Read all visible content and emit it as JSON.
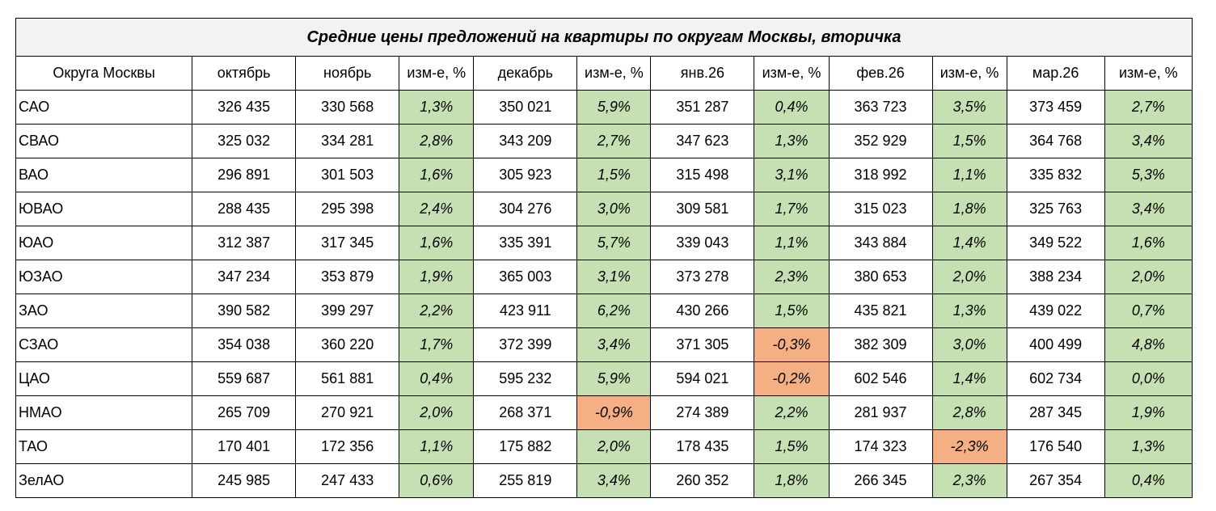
{
  "title": "Средние цены предложений на  квартиры по округам Москвы, вторичка",
  "colors": {
    "positive": "#c6e0b4",
    "negative": "#f4b084",
    "title_bg": "#f2f2f2"
  },
  "headers": [
    "Округа Москвы",
    "октябрь",
    "ноябрь",
    "изм-е, %",
    "декабрь",
    "изм-е, %",
    "янв.26",
    "изм-е, %",
    "фев.26",
    "изм-е, %",
    "мар.26",
    "изм-е, %"
  ],
  "rows": [
    [
      "САО",
      "326 435",
      "330 568",
      "1,3%",
      "350 021",
      "5,9%",
      "351 287",
      "0,4%",
      "363 723",
      "3,5%",
      "373 459",
      "2,7%"
    ],
    [
      "СВАО",
      "325 032",
      "334 281",
      "2,8%",
      "343 209",
      "2,7%",
      "347 623",
      "1,3%",
      "352 929",
      "1,5%",
      "364 768",
      "3,4%"
    ],
    [
      "ВАО",
      "296 891",
      "301 503",
      "1,6%",
      "305 923",
      "1,5%",
      "315 498",
      "3,1%",
      "318 992",
      "1,1%",
      "335 832",
      "5,3%"
    ],
    [
      "ЮВАО",
      "288 435",
      "295 398",
      "2,4%",
      "304 276",
      "3,0%",
      "309 581",
      "1,7%",
      "315 023",
      "1,8%",
      "325 763",
      "3,4%"
    ],
    [
      "ЮАО",
      "312 387",
      "317 345",
      "1,6%",
      "335 391",
      "5,7%",
      "339 043",
      "1,1%",
      "343 884",
      "1,4%",
      "349 522",
      "1,6%"
    ],
    [
      "ЮЗАО",
      "347 234",
      "353 879",
      "1,9%",
      "365 003",
      "3,1%",
      "373 278",
      "2,3%",
      "380 653",
      "2,0%",
      "388 234",
      "2,0%"
    ],
    [
      "ЗАО",
      "390 582",
      "399 297",
      "2,2%",
      "423 911",
      "6,2%",
      "430 266",
      "1,5%",
      "435 821",
      "1,3%",
      "439 022",
      "0,7%"
    ],
    [
      "СЗАО",
      "354 038",
      "360 220",
      "1,7%",
      "372 399",
      "3,4%",
      "371 305",
      "-0,3%",
      "382 309",
      "3,0%",
      "400 499",
      "4,8%"
    ],
    [
      "ЦАО",
      "559 687",
      "561 881",
      "0,4%",
      "595 232",
      "5,9%",
      "594 021",
      "-0,2%",
      "602 546",
      "1,4%",
      "602 734",
      "0,0%"
    ],
    [
      "НМАО",
      "265 709",
      "270 921",
      "2,0%",
      "268 371",
      "-0,9%",
      "274 389",
      "2,2%",
      "281 937",
      "2,8%",
      "287 345",
      "1,9%"
    ],
    [
      "ТАО",
      "170 401",
      "172 356",
      "1,1%",
      "175 882",
      "2,0%",
      "178 435",
      "1,5%",
      "174 323",
      "-2,3%",
      "176 540",
      "1,3%"
    ],
    [
      "ЗелАО",
      "245 985",
      "247 433",
      "0,6%",
      "255 819",
      "3,4%",
      "260 352",
      "1,8%",
      "266 345",
      "2,3%",
      "267 354",
      "0,4%"
    ]
  ]
}
